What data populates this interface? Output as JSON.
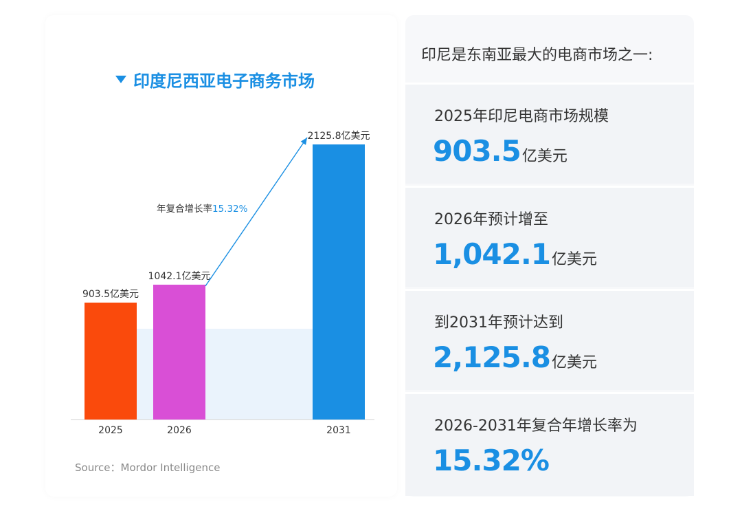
{
  "chart_data": {
    "type": "bar",
    "title": "印度尼西亚电子商务市场",
    "categories": [
      "2025",
      "2026",
      "2031"
    ],
    "values": [
      903.5,
      1042.1,
      2125.8
    ],
    "value_labels": [
      "903.5亿美元",
      "1042.1亿美元",
      "2125.8亿美元"
    ],
    "colors": [
      "#fa4a0c",
      "#d94fd6",
      "#1a8fe3"
    ],
    "ylim": [
      0,
      2125.8
    ],
    "xlabel": "",
    "ylabel": "",
    "annotation": {
      "prefix": "年复合增长率",
      "value": "15.32%"
    }
  },
  "source": "Source：Mordor Intelligence",
  "panel": {
    "header": "印尼是东南亚最大的电商市场之一:",
    "stats": [
      {
        "label": "2025年印尼电商市场规模",
        "value": "903.5",
        "unit": "亿美元"
      },
      {
        "label": "2026年预计增至",
        "value": "1,042.1",
        "unit": "亿美元"
      },
      {
        "label": "到2031年预计达到",
        "value": "2,125.8",
        "unit": "亿美元"
      },
      {
        "label": "2026-2031年复合年增长率为",
        "value": "15.32%",
        "unit": ""
      }
    ]
  }
}
